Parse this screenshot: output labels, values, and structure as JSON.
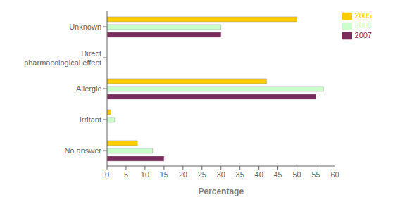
{
  "chart_data": {
    "type": "bar",
    "orientation": "horizontal",
    "categories": [
      "Unknown",
      "Direct\npharmacological effect",
      "Allergic",
      "Irritant",
      "No answer"
    ],
    "series": [
      {
        "name": "2005",
        "color": "#FFCC00",
        "values": [
          50,
          0,
          42,
          1,
          8
        ]
      },
      {
        "name": "2006",
        "color": "#CCFFCC",
        "values": [
          30,
          0,
          57,
          2,
          12
        ]
      },
      {
        "name": "2007",
        "color": "#7B2D5E",
        "values": [
          30,
          0,
          55,
          0,
          15
        ]
      }
    ],
    "xlabel": "Percentage",
    "xlim": [
      0,
      60
    ],
    "xticks": [
      0,
      5,
      10,
      15,
      20,
      25,
      30,
      35,
      40,
      45,
      50,
      55,
      60
    ],
    "grid": false,
    "legend": "upper right"
  }
}
